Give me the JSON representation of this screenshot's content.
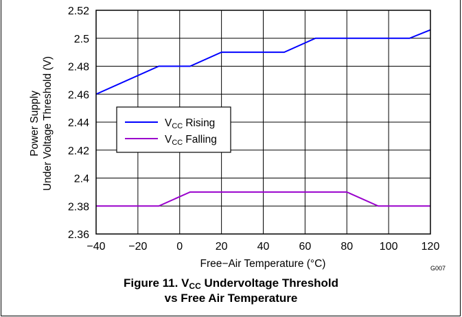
{
  "chart_data": {
    "type": "line",
    "figure_label": "Figure 11.",
    "title_parts": [
      "V",
      "CC",
      "Undervoltage Threshold"
    ],
    "title_line2": "vs Free Air Temperature",
    "xlabel": "Free−Air Temperature (°C)",
    "ylabel_line1": "Power Supply",
    "ylabel_line2": "Under Voltage Threshold (V)",
    "figure_code": "G007",
    "xlim": [
      -40,
      120
    ],
    "ylim": [
      2.36,
      2.52
    ],
    "x_ticks": [
      -40,
      -20,
      0,
      20,
      40,
      60,
      80,
      100,
      120
    ],
    "x_tick_labels": [
      "−40",
      "−20",
      "0",
      "20",
      "40",
      "60",
      "80",
      "100",
      "120"
    ],
    "y_ticks": [
      2.36,
      2.38,
      2.4,
      2.42,
      2.44,
      2.46,
      2.48,
      2.5,
      2.52
    ],
    "y_tick_labels": [
      "2.36",
      "2.38",
      "2.4",
      "2.42",
      "2.44",
      "2.46",
      "2.48",
      "2.5",
      "2.52"
    ],
    "grid": true,
    "legend_position": "middle-left",
    "series": [
      {
        "name_main": "V",
        "name_sub": "CC",
        "name_rest": "Rising",
        "color": "#0000ff",
        "points": [
          [
            -40,
            2.46
          ],
          [
            -10,
            2.48
          ],
          [
            5,
            2.48
          ],
          [
            20,
            2.49
          ],
          [
            50,
            2.49
          ],
          [
            65,
            2.5
          ],
          [
            110,
            2.5
          ],
          [
            120,
            2.506
          ]
        ]
      },
      {
        "name_main": "V",
        "name_sub": "CC",
        "name_rest": "Falling",
        "color": "#9900cc",
        "points": [
          [
            -40,
            2.38
          ],
          [
            -10,
            2.38
          ],
          [
            5,
            2.39
          ],
          [
            80,
            2.39
          ],
          [
            95,
            2.38
          ],
          [
            120,
            2.38
          ]
        ]
      }
    ]
  }
}
